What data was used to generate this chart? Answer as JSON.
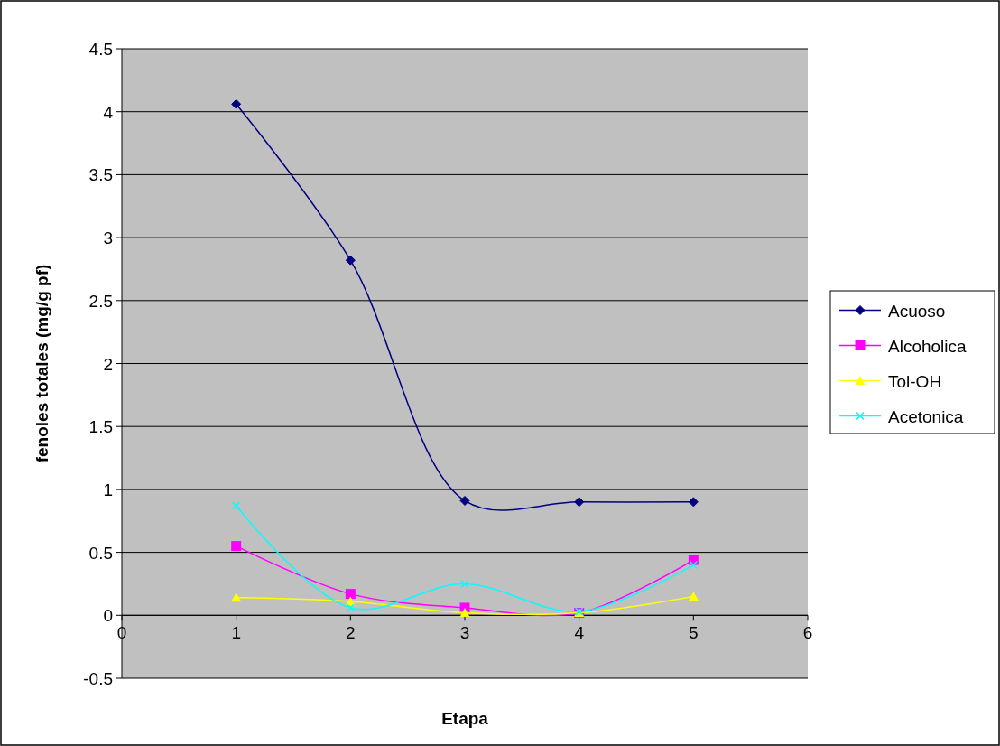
{
  "chart_data": {
    "type": "line",
    "xlabel": "Etapa",
    "ylabel": "fenoles totales (mg/g pf)",
    "x": [
      1,
      2,
      3,
      4,
      5
    ],
    "series": [
      {
        "name": "Acuoso",
        "color": "#000080",
        "marker": "diamond",
        "values": [
          4.06,
          2.82,
          0.91,
          0.9,
          0.9
        ]
      },
      {
        "name": "Alcoholica",
        "color": "#ff00ff",
        "marker": "square",
        "values": [
          0.55,
          0.17,
          0.06,
          0.02,
          0.44
        ]
      },
      {
        "name": "Tol-OH",
        "color": "#ffff00",
        "marker": "triangle",
        "values": [
          0.14,
          0.11,
          0.02,
          0.02,
          0.15
        ]
      },
      {
        "name": "Acetonica",
        "color": "#00ffff",
        "marker": "cross",
        "values": [
          0.87,
          0.06,
          0.25,
          0.03,
          0.4
        ]
      }
    ],
    "xlim": [
      0,
      6
    ],
    "xticks": [
      0,
      1,
      2,
      3,
      4,
      5,
      6
    ],
    "ylim": [
      -0.5,
      4.5
    ],
    "yticks": [
      -0.5,
      0,
      0.5,
      1,
      1.5,
      2,
      2.5,
      3,
      3.5,
      4,
      4.5
    ],
    "grid": "y",
    "legend": "right"
  }
}
